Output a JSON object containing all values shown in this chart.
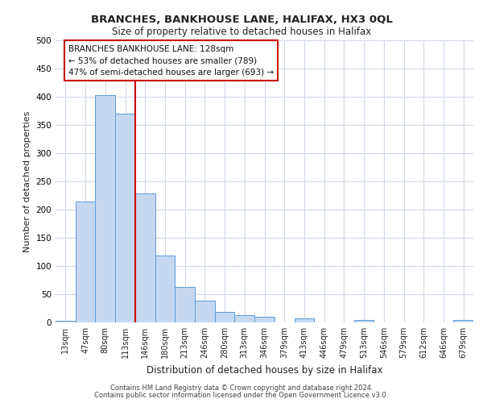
{
  "title": "BRANCHES, BANKHOUSE LANE, HALIFAX, HX3 0QL",
  "subtitle": "Size of property relative to detached houses in Halifax",
  "xlabel": "Distribution of detached houses by size in Halifax",
  "ylabel": "Number of detached properties",
  "footer_line1": "Contains HM Land Registry data © Crown copyright and database right 2024.",
  "footer_line2": "Contains public sector information licensed under the Open Government Licence v3.0.",
  "bar_labels": [
    "13sqm",
    "47sqm",
    "80sqm",
    "113sqm",
    "146sqm",
    "180sqm",
    "213sqm",
    "246sqm",
    "280sqm",
    "313sqm",
    "346sqm",
    "379sqm",
    "413sqm",
    "446sqm",
    "479sqm",
    "513sqm",
    "546sqm",
    "579sqm",
    "612sqm",
    "646sqm",
    "679sqm"
  ],
  "bar_values": [
    3,
    215,
    403,
    370,
    228,
    119,
    63,
    39,
    18,
    13,
    10,
    0,
    7,
    0,
    0,
    5,
    0,
    0,
    0,
    0,
    4
  ],
  "bar_color": "#c5d8f0",
  "bar_edge_color": "#5b9bd5",
  "ylim": [
    0,
    500
  ],
  "yticks": [
    0,
    50,
    100,
    150,
    200,
    250,
    300,
    350,
    400,
    450,
    500
  ],
  "vline_color": "#cc0000",
  "annotation_title": "BRANCHES BANKHOUSE LANE: 128sqm",
  "annotation_line1": "← 53% of detached houses are smaller (789)",
  "annotation_line2": "47% of semi-detached houses are larger (693) →",
  "annotation_box_color": "#ffffff",
  "annotation_box_edge": "#cc0000",
  "background_color": "#ffffff",
  "grid_color": "#d0d8e8"
}
